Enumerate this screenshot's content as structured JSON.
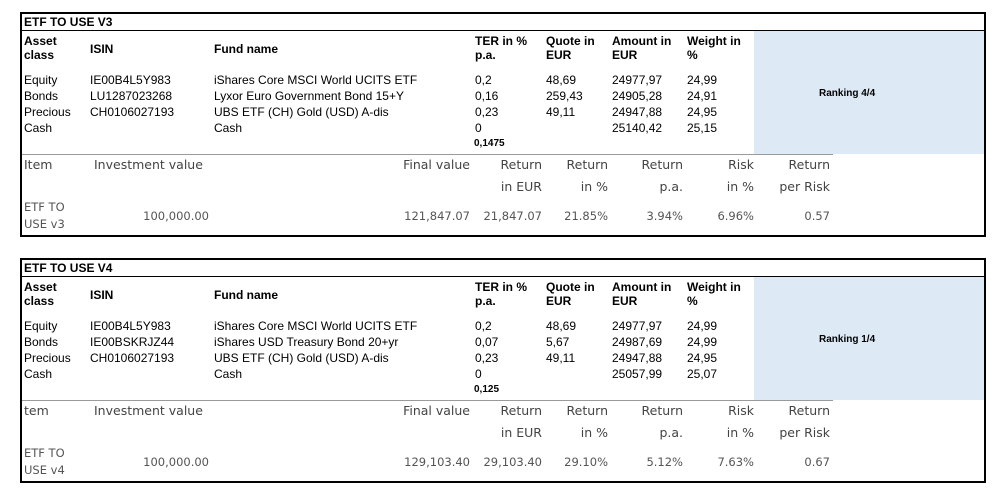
{
  "panels": [
    {
      "title": "ETF TO USE V3",
      "ranking": "Ranking 4/4",
      "headers": {
        "asset_class": "Asset class",
        "isin": "ISIN",
        "fund_name": "Fund name",
        "ter": "TER in % p.a.",
        "quote": "Quote in EUR",
        "amount": "Amount in EUR",
        "weight": "Weight in %"
      },
      "rows": [
        {
          "asset_class": "Equity",
          "isin": "IE00B4L5Y983",
          "fund_name": "iShares Core MSCI World UCITS ETF",
          "ter": "0,2",
          "quote": "48,69",
          "amount": "24977,97",
          "weight": "24,99"
        },
        {
          "asset_class": "Bonds",
          "isin": "LU1287023268",
          "fund_name": "Lyxor Euro Government Bond 15+Y",
          "ter": "0,16",
          "quote": "259,43",
          "amount": "24905,28",
          "weight": "24,91"
        },
        {
          "asset_class": "Precious",
          "isin": "CH0106027193",
          "fund_name": "UBS ETF (CH) Gold (USD) A-dis",
          "ter": "0,23",
          "quote": "49,11",
          "amount": "24947,88",
          "weight": "24,95"
        },
        {
          "asset_class": "Cash",
          "isin": "",
          "fund_name": "Cash",
          "ter": "0",
          "quote": "",
          "amount": "25140,42",
          "weight": "25,15"
        }
      ],
      "ter_total": "0,1475",
      "result_headers": {
        "item": "Item",
        "investment": "Investment value",
        "final": "Final value",
        "return_eur_1": "Return",
        "return_eur_2": "in EUR",
        "return_pct_1": "Return",
        "return_pct_2": "in %",
        "return_pa_1": "Return",
        "return_pa_2": "p.a.",
        "risk_1": "Risk",
        "risk_2": "in %",
        "rpr_1": "Return",
        "rpr_2": "per Risk"
      },
      "result": {
        "item": "ETF TO USE v3",
        "investment": "100,000.00",
        "final": "121,847.07",
        "return_eur": "21,847.07",
        "return_pct": "21.85%",
        "return_pa": "3.94%",
        "risk": "6.96%",
        "rpr": "0.57"
      }
    },
    {
      "title": "ETF TO USE V4",
      "ranking": "Ranking 1/4",
      "headers": {
        "asset_class": "Asset class",
        "isin": "ISIN",
        "fund_name": "Fund name",
        "ter": "TER in % p.a.",
        "quote": "Quote in EUR",
        "amount": "Amount in EUR",
        "weight": "Weight in %"
      },
      "rows": [
        {
          "asset_class": "Equity",
          "isin": "IE00B4L5Y983",
          "fund_name": "iShares Core MSCI World UCITS ETF",
          "ter": "0,2",
          "quote": "48,69",
          "amount": "24977,97",
          "weight": "24,99"
        },
        {
          "asset_class": "Bonds",
          "isin": "IE00BSKRJZ44",
          "fund_name": "iShares USD Treasury Bond 20+yr",
          "ter": "0,07",
          "quote": "5,67",
          "amount": "24987,69",
          "weight": "24,99"
        },
        {
          "asset_class": "Precious",
          "isin": "CH0106027193",
          "fund_name": "UBS ETF (CH) Gold (USD) A-dis",
          "ter": "0,23",
          "quote": "49,11",
          "amount": "24947,88",
          "weight": "24,95"
        },
        {
          "asset_class": "Cash",
          "isin": "",
          "fund_name": "Cash",
          "ter": "0",
          "quote": "",
          "amount": "25057,99",
          "weight": "25,07"
        }
      ],
      "ter_total": "0,125",
      "result_headers": {
        "item": "tem",
        "investment": "Investment value",
        "final": "Final value",
        "return_eur_1": "Return",
        "return_eur_2": "in EUR",
        "return_pct_1": "Return",
        "return_pct_2": "in %",
        "return_pa_1": "Return",
        "return_pa_2": "p.a.",
        "risk_1": "Risk",
        "risk_2": "in %",
        "rpr_1": "Return",
        "rpr_2": "per Risk"
      },
      "result": {
        "item": "ETF TO USE v4",
        "investment": "100,000.00",
        "final": "129,103.40",
        "return_eur": "29,103.40",
        "return_pct": "29.10%",
        "return_pa": "5.12%",
        "risk": "7.63%",
        "rpr": "0.67"
      }
    }
  ]
}
